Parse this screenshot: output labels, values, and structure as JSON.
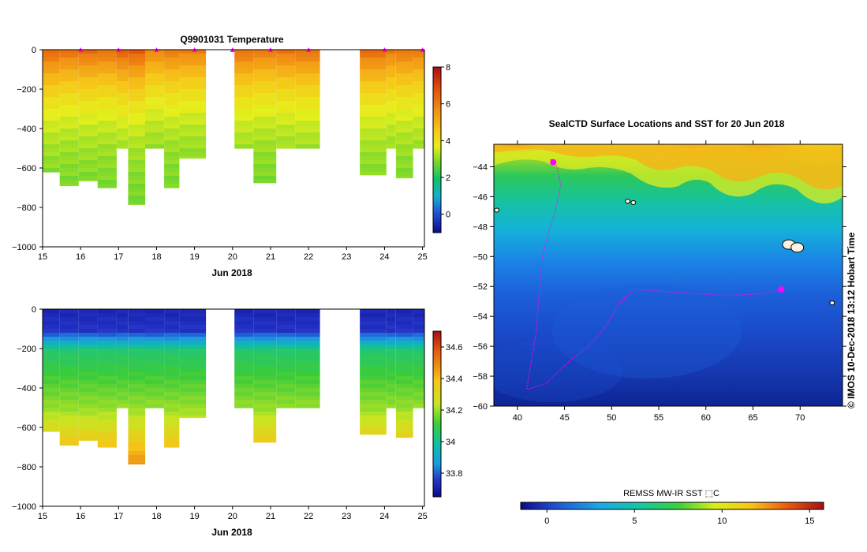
{
  "chart_data": [
    {
      "type": "heatmap",
      "title": "Q9901031  Temperature",
      "xlabel": "Jun 2018",
      "ylabel": "",
      "x_ticks": [
        "15",
        "16",
        "17",
        "18",
        "19",
        "20",
        "21",
        "22",
        "23",
        "24",
        "25"
      ],
      "y_ticks": [
        "0",
        "−200",
        "−400",
        "−600",
        "−800",
        "−1000"
      ],
      "xlim": [
        15,
        25.05
      ],
      "ylim": [
        -1000,
        0
      ],
      "colorbar_ticks": [
        "8",
        "6",
        "4",
        "2",
        "0"
      ],
      "colorbar_range": [
        -1,
        8
      ],
      "profiles": [
        {
          "t0": 15.0,
          "t1": 15.45,
          "depth": 620,
          "surface": 6.4
        },
        {
          "t0": 15.45,
          "t1": 15.95,
          "depth": 690,
          "surface": 6.2
        },
        {
          "t0": 15.95,
          "t1": 16.45,
          "depth": 665,
          "surface": 6.3
        },
        {
          "t0": 16.45,
          "t1": 16.95,
          "depth": 700,
          "surface": 6.2
        },
        {
          "t0": 16.95,
          "t1": 17.25,
          "depth": 500,
          "surface": 6.5
        },
        {
          "t0": 17.25,
          "t1": 17.7,
          "depth": 785,
          "surface": 6.6
        },
        {
          "t0": 17.7,
          "t1": 18.2,
          "depth": 500,
          "surface": 5.8
        },
        {
          "t0": 18.2,
          "t1": 18.6,
          "depth": 700,
          "surface": 6.0
        },
        {
          "t0": 18.6,
          "t1": 19.3,
          "depth": 550,
          "surface": 5.9
        },
        {
          "t0": 20.05,
          "t1": 20.55,
          "depth": 500,
          "surface": 6.2
        },
        {
          "t0": 20.55,
          "t1": 21.15,
          "depth": 675,
          "surface": 6.0
        },
        {
          "t0": 21.15,
          "t1": 21.65,
          "depth": 500,
          "surface": 6.1
        },
        {
          "t0": 21.65,
          "t1": 22.3,
          "depth": 500,
          "surface": 6.2
        },
        {
          "t0": 23.35,
          "t1": 24.05,
          "depth": 635,
          "surface": 6.3
        },
        {
          "t0": 24.05,
          "t1": 24.3,
          "depth": 500,
          "surface": 6.0
        },
        {
          "t0": 24.3,
          "t1": 24.75,
          "depth": 650,
          "surface": 6.1
        },
        {
          "t0": 24.75,
          "t1": 25.05,
          "depth": 500,
          "surface": 6.0
        }
      ],
      "markers_x": [
        16,
        17,
        18,
        19,
        20,
        21,
        22,
        24,
        25
      ]
    },
    {
      "type": "heatmap",
      "title": "",
      "xlabel": "Jun 2018",
      "ylabel": "",
      "x_ticks": [
        "15",
        "16",
        "17",
        "18",
        "19",
        "20",
        "21",
        "22",
        "23",
        "24",
        "25"
      ],
      "y_ticks": [
        "0",
        "−200",
        "−400",
        "−600",
        "−800",
        "−1000"
      ],
      "xlim": [
        15,
        25.05
      ],
      "ylim": [
        -1000,
        0
      ],
      "colorbar_ticks": [
        "34.6",
        "34.4",
        "34.2",
        "34",
        "33.8"
      ],
      "colorbar_range": [
        33.65,
        34.7
      ],
      "profiles": "same as temperature section"
    },
    {
      "type": "heatmap",
      "title": "SealCTD Surface Locations and SST for 20 Jun 2018",
      "xlabel": "",
      "ylabel": "",
      "x_ticks": [
        "40",
        "45",
        "50",
        "55",
        "60",
        "65",
        "70"
      ],
      "y_ticks": [
        "−44",
        "−46",
        "−48",
        "−50",
        "−52",
        "−54",
        "−56",
        "−58",
        "−60"
      ],
      "xlim": [
        37.5,
        74.5
      ],
      "ylim": [
        -60,
        -42.5
      ],
      "colorbar_label": "REMSS MW-IR SST ⬚C",
      "colorbar_ticks": [
        "0",
        "5",
        "10",
        "15"
      ],
      "colorbar_range": [
        -1.5,
        15.8
      ],
      "track_points": [
        [
          43.5,
          -43.5
        ],
        [
          44.2,
          -44.0
        ],
        [
          44.6,
          -45.2
        ],
        [
          44.0,
          -47.0
        ],
        [
          43.2,
          -48.6
        ],
        [
          42.6,
          -50.2
        ],
        [
          42.3,
          -52.5
        ],
        [
          42.0,
          -55.0
        ],
        [
          41.2,
          -58.0
        ],
        [
          41.0,
          -58.9
        ],
        [
          43.0,
          -58.5
        ],
        [
          45.5,
          -57.0
        ],
        [
          47.5,
          -56.0
        ],
        [
          49.0,
          -55.0
        ],
        [
          51.0,
          -53.0
        ],
        [
          52.5,
          -52.2
        ],
        [
          57.0,
          -52.4
        ],
        [
          62.0,
          -52.6
        ],
        [
          66.0,
          -52.5
        ],
        [
          68.0,
          -52.2
        ]
      ],
      "highlight_points": [
        [
          43.8,
          -43.7
        ],
        [
          68.0,
          -52.2
        ]
      ],
      "islands": [
        [
          37.8,
          -46.9
        ],
        [
          51.7,
          -46.3
        ],
        [
          52.3,
          -46.4
        ],
        [
          68.8,
          -49.2
        ],
        [
          69.7,
          -49.4
        ],
        [
          73.4,
          -53.1
        ]
      ]
    }
  ],
  "credit": "© IMOS 10-Dec-2018 13:12 Hobart Time",
  "colors": {
    "accent": "#ff00ff",
    "frame": "#000000"
  }
}
